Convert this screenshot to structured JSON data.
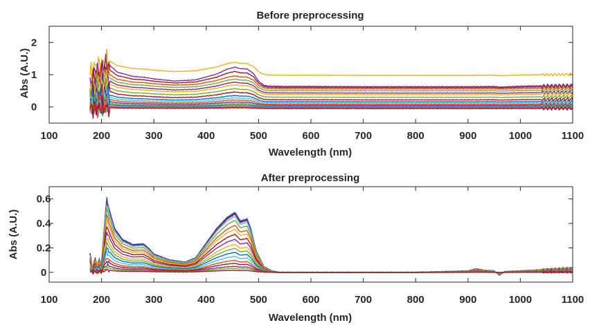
{
  "chart_data": [
    {
      "type": "line",
      "title": "Before preprocessing",
      "xlabel": "Wavelength (nm)",
      "ylabel": "Abs (A.U.)",
      "xlim": [
        100,
        1100
      ],
      "ylim": [
        -0.5,
        2.5
      ],
      "xticks": [
        100,
        200,
        300,
        400,
        500,
        600,
        700,
        800,
        900,
        1000,
        1100
      ],
      "yticks": [
        0,
        1,
        2
      ],
      "grid": false,
      "x_range": [
        178,
        1100
      ],
      "n_spectra": 18,
      "profile": {
        "wavelength": [
          178,
          185,
          200,
          210,
          230,
          260,
          280,
          300,
          340,
          380,
          420,
          440,
          455,
          465,
          478,
          490,
          500,
          510,
          520,
          550,
          600,
          700,
          800,
          900,
          950,
          960,
          1000,
          1050,
          1100
        ],
        "shape": [
          0.05,
          0.55,
          0.72,
          1.0,
          0.6,
          0.42,
          0.39,
          0.32,
          0.23,
          0.28,
          0.52,
          0.72,
          0.81,
          0.74,
          0.73,
          0.55,
          0.22,
          0.06,
          0.02,
          0.01,
          0.01,
          0.0,
          0.0,
          0.0,
          0.01,
          -0.02,
          0.02,
          0.04,
          0.06
        ]
      },
      "series": [
        {
          "offset": 0.98,
          "amplitude": 0.5,
          "color": "#EDB120"
        },
        {
          "offset": 0.63,
          "amplitude": 0.75,
          "color": "#7E2F8E"
        },
        {
          "offset": 0.6,
          "amplitude": 0.62,
          "color": "#A2142F"
        },
        {
          "offset": 0.56,
          "amplitude": 0.5,
          "color": "#D95319"
        },
        {
          "offset": 0.5,
          "amplitude": 0.45,
          "color": "#77AC30"
        },
        {
          "offset": 0.43,
          "amplitude": 0.42,
          "color": "#7E2F8E"
        },
        {
          "offset": 0.38,
          "amplitude": 0.38,
          "color": "#EDB120"
        },
        {
          "offset": 0.3,
          "amplitude": 0.33,
          "color": "#77AC30"
        },
        {
          "offset": 0.22,
          "amplitude": 0.3,
          "color": "#A2142F"
        },
        {
          "offset": 0.16,
          "amplitude": 0.24,
          "color": "#0072BD"
        },
        {
          "offset": 0.12,
          "amplitude": 0.2,
          "color": "#4DBEEE"
        },
        {
          "offset": 0.08,
          "amplitude": 0.17,
          "color": "#D95319"
        },
        {
          "offset": 0.05,
          "amplitude": 0.13,
          "color": "#7E2F8E"
        },
        {
          "offset": 0.02,
          "amplitude": 0.11,
          "color": "#77AC30"
        },
        {
          "offset": 0.0,
          "amplitude": 0.08,
          "color": "#0072BD"
        },
        {
          "offset": -0.02,
          "amplitude": 0.06,
          "color": "#4DBEEE"
        },
        {
          "offset": -0.03,
          "amplitude": 0.04,
          "color": "#D95319"
        },
        {
          "offset": -0.05,
          "amplitude": 0.03,
          "color": "#A2142F"
        }
      ]
    },
    {
      "type": "line",
      "title": "After preprocessing",
      "xlabel": "Wavelength (nm)",
      "ylabel": "Abs (A.U.)",
      "xlim": [
        100,
        1100
      ],
      "ylim": [
        -0.08,
        0.7
      ],
      "xticks": [
        100,
        200,
        300,
        400,
        500,
        600,
        700,
        800,
        900,
        1000,
        1100
      ],
      "yticks": [
        0,
        0.2,
        0.4,
        0.6
      ],
      "grid": false,
      "x_range": [
        178,
        1100
      ],
      "n_spectra": 18,
      "profile": {
        "wavelength": [
          178,
          183,
          188,
          192,
          196,
          200,
          205,
          210,
          215,
          225,
          240,
          260,
          280,
          290,
          300,
          330,
          360,
          380,
          400,
          420,
          440,
          455,
          465,
          478,
          485,
          495,
          510,
          525,
          540,
          600,
          700,
          800,
          900,
          915,
          930,
          950,
          960,
          970,
          1000,
          1050,
          1100
        ],
        "shape": [
          0.25,
          0.05,
          0.2,
          0.08,
          0.18,
          0.1,
          0.6,
          1.0,
          0.85,
          0.6,
          0.45,
          0.38,
          0.39,
          0.33,
          0.25,
          0.17,
          0.14,
          0.2,
          0.4,
          0.6,
          0.75,
          0.82,
          0.7,
          0.73,
          0.6,
          0.3,
          0.08,
          0.02,
          0.0,
          0.0,
          0.0,
          0.0,
          0.02,
          0.05,
          0.03,
          0.02,
          -0.04,
          0.01,
          0.02,
          0.04,
          0.06
        ]
      },
      "series": [
        {
          "offset": 0,
          "amplitude": 0.6,
          "color": "#0072BD"
        },
        {
          "offset": 0,
          "amplitude": 0.59,
          "color": "#A2142F"
        },
        {
          "offset": 0,
          "amplitude": 0.58,
          "color": "#7E2F8E"
        },
        {
          "offset": 0,
          "amplitude": 0.56,
          "color": "#4DBEEE"
        },
        {
          "offset": 0,
          "amplitude": 0.52,
          "color": "#77AC30"
        },
        {
          "offset": 0,
          "amplitude": 0.47,
          "color": "#D95319"
        },
        {
          "offset": 0,
          "amplitude": 0.43,
          "color": "#EDB120"
        },
        {
          "offset": 0,
          "amplitude": 0.38,
          "color": "#A2142F"
        },
        {
          "offset": 0,
          "amplitude": 0.33,
          "color": "#7E2F8E"
        },
        {
          "offset": 0,
          "amplitude": 0.28,
          "color": "#EDB120"
        },
        {
          "offset": 0,
          "amplitude": 0.24,
          "color": "#77AC30"
        },
        {
          "offset": 0,
          "amplitude": 0.2,
          "color": "#0072BD"
        },
        {
          "offset": 0,
          "amplitude": 0.16,
          "color": "#4DBEEE"
        },
        {
          "offset": 0,
          "amplitude": 0.12,
          "color": "#D95319"
        },
        {
          "offset": 0,
          "amplitude": 0.09,
          "color": "#A2142F"
        },
        {
          "offset": 0,
          "amplitude": 0.06,
          "color": "#7E2F8E"
        },
        {
          "offset": 0,
          "amplitude": 0.04,
          "color": "#77AC30"
        },
        {
          "offset": 0,
          "amplitude": 0.02,
          "color": "#A2142F"
        }
      ]
    }
  ]
}
